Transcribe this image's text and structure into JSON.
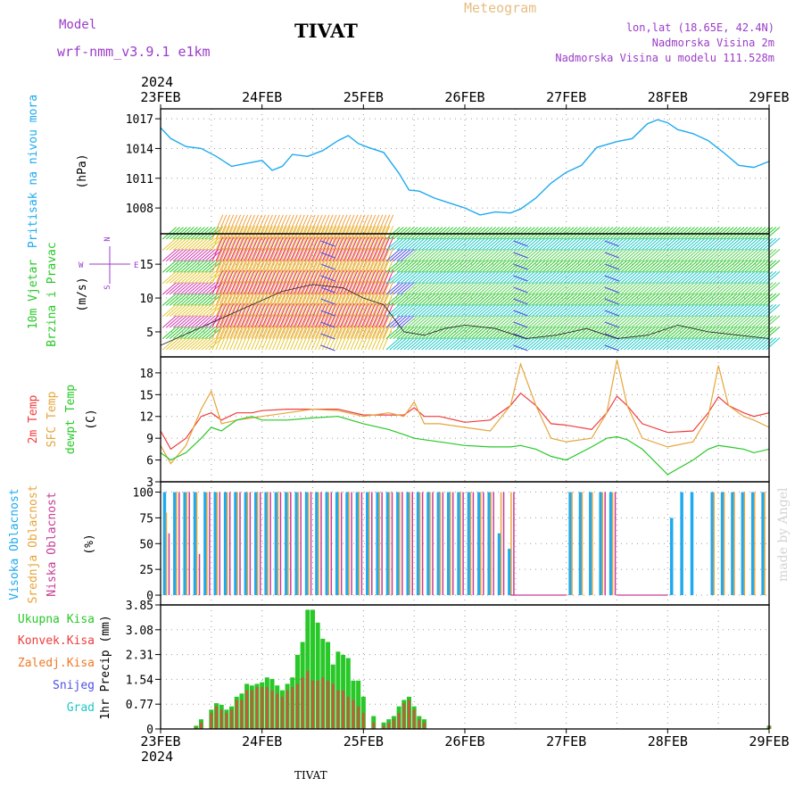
{
  "header": {
    "model_label": "Model",
    "model_name": "wrf-nmm_v3.9.1  e1km",
    "station": "TIVAT",
    "meteogram": "Meteogram",
    "lonlat": "lon,lat (18.65E, 42.4N)",
    "elevation": "Nadmorska Visina 2m",
    "model_elevation": "Nadmorska Visina u modelu 111.528m",
    "footer_station": "TIVAT",
    "signature": "made by Angel",
    "year_top": "2024",
    "year_bottom": "2024"
  },
  "colors": {
    "pressure": "#1eaaf0",
    "temp2m": "#f03c3c",
    "sfc_temp": "#e6a53c",
    "dewpt": "#28c828",
    "high_cloud": "#1eaaf0",
    "mid_cloud": "#e6a53c",
    "low_cloud": "#c83c96",
    "precip_total": "#28c828",
    "precip_conv": "#f03c3c",
    "sleet": "#f07828",
    "snow": "#5050e6",
    "hail": "#1ec8c8",
    "wind_axis_label": "#9b3cc8"
  },
  "chart_data": [
    {
      "type": "line",
      "panel": "pressure",
      "x_labels": [
        "23FEB",
        "24FEB",
        "25FEB",
        "26FEB",
        "27FEB",
        "28FEB",
        "29FEB"
      ],
      "ylabel_colored": "Pritisak na nivou mora",
      "ylabel_unit": "(hPa)",
      "y_ticks": [
        1008,
        1011,
        1014,
        1017
      ],
      "ylim": [
        1005.4,
        1018.0
      ],
      "x_days": [
        0.0,
        0.1,
        0.25,
        0.4,
        0.55,
        0.7,
        0.85,
        1.0,
        1.1,
        1.2,
        1.3,
        1.45,
        1.6,
        1.75,
        1.85,
        1.95,
        2.05,
        2.2,
        2.35,
        2.45,
        2.55,
        2.7,
        2.85,
        3.0,
        3.15,
        3.3,
        3.45,
        3.55,
        3.7,
        3.85,
        4.0,
        4.15,
        4.3,
        4.5,
        4.65,
        4.8,
        4.9,
        5.0,
        5.1,
        5.25,
        5.4,
        5.55,
        5.7,
        5.85,
        6.0
      ],
      "series": [
        {
          "values": [
            1016.1,
            1015.0,
            1014.2,
            1014.0,
            1013.2,
            1012.2,
            1012.5,
            1012.8,
            1011.8,
            1012.2,
            1013.4,
            1013.2,
            1013.8,
            1014.8,
            1015.3,
            1014.5,
            1014.1,
            1013.6,
            1011.5,
            1009.8,
            1009.7,
            1009.0,
            1008.5,
            1008.0,
            1007.3,
            1007.6,
            1007.5,
            1007.9,
            1009.0,
            1010.5,
            1011.6,
            1012.3,
            1014.1,
            1014.7,
            1015.0,
            1016.5,
            1016.9,
            1016.6,
            1015.9,
            1015.5,
            1014.8,
            1013.6,
            1012.3,
            1012.1,
            1012.7
          ]
        }
      ]
    },
    {
      "type": "line",
      "panel": "wind",
      "ylabel_colored": [
        "10m Vjetar",
        "Brzina i Pravac"
      ],
      "ylabel_unit": "(m/s)",
      "compass_labels": [
        "N",
        "E",
        "S",
        "W"
      ],
      "y_ticks": [
        5,
        10,
        15
      ],
      "ylim": [
        1.3,
        19.5
      ],
      "x_days": [
        0.0,
        0.3,
        0.6,
        0.9,
        1.2,
        1.5,
        1.8,
        2.0,
        2.2,
        2.4,
        2.6,
        2.8,
        3.0,
        3.3,
        3.6,
        3.9,
        4.2,
        4.5,
        4.8,
        5.1,
        5.4,
        5.7,
        6.0
      ],
      "series": [
        {
          "values": [
            3.0,
            5.0,
            7.0,
            9.0,
            11.0,
            12.0,
            11.5,
            10.0,
            9.0,
            5.0,
            4.5,
            5.5,
            6.0,
            5.5,
            4.0,
            4.5,
            5.5,
            4.0,
            4.5,
            6.0,
            5.0,
            4.5,
            4.0
          ]
        }
      ]
    },
    {
      "type": "line",
      "panel": "temperature",
      "ylabel_colored": [
        "2m Temp",
        "SFC Temp",
        "dewpt Temp"
      ],
      "ylabel_unit": "(C)",
      "y_ticks": [
        3,
        6,
        9,
        12,
        15,
        18
      ],
      "ylim": [
        3,
        20.2
      ],
      "x_days": [
        0.0,
        0.1,
        0.25,
        0.4,
        0.5,
        0.6,
        0.75,
        0.9,
        1.0,
        1.25,
        1.5,
        1.75,
        2.0,
        2.25,
        2.4,
        2.5,
        2.6,
        2.75,
        3.0,
        3.25,
        3.45,
        3.55,
        3.7,
        3.85,
        4.0,
        4.25,
        4.4,
        4.5,
        4.6,
        4.75,
        5.0,
        5.25,
        5.4,
        5.5,
        5.6,
        5.75,
        5.85,
        6.0
      ],
      "series": [
        {
          "name": "2m Temp",
          "values": [
            10.0,
            7.5,
            9.0,
            12.0,
            12.5,
            11.5,
            12.5,
            12.5,
            12.8,
            13.0,
            13.0,
            13.0,
            12.2,
            12.2,
            12.2,
            13.2,
            12.0,
            12.0,
            11.2,
            11.5,
            13.5,
            15.2,
            13.5,
            11.0,
            10.8,
            10.2,
            12.5,
            14.8,
            13.5,
            11.0,
            9.8,
            10.0,
            12.5,
            14.7,
            13.5,
            12.5,
            12.0,
            12.5
          ]
        },
        {
          "name": "SFC Temp",
          "values": [
            8.0,
            5.5,
            8.0,
            13.0,
            15.5,
            11.0,
            11.5,
            11.8,
            12.0,
            12.5,
            13.0,
            12.8,
            12.0,
            12.5,
            12.0,
            14.0,
            11.0,
            11.0,
            10.5,
            10.0,
            13.5,
            19.2,
            13.5,
            9.0,
            8.5,
            9.0,
            12.5,
            19.8,
            13.5,
            9.0,
            7.8,
            8.5,
            12.0,
            19.0,
            13.5,
            12.0,
            11.5,
            10.5
          ]
        },
        {
          "name": "dewpt Temp",
          "values": [
            7.0,
            6.0,
            7.0,
            9.0,
            10.5,
            10.0,
            11.5,
            12.0,
            11.5,
            11.5,
            11.8,
            12.0,
            11.0,
            10.2,
            9.5,
            9.0,
            8.8,
            8.5,
            8.0,
            7.8,
            7.8,
            8.0,
            7.5,
            6.5,
            6.0,
            7.8,
            9.0,
            9.2,
            8.8,
            7.5,
            4.0,
            6.0,
            7.5,
            8.0,
            7.8,
            7.5,
            7.0,
            7.5
          ]
        }
      ]
    },
    {
      "type": "bar",
      "panel": "cloud",
      "ylabel_colored": [
        "Visoka Oblacnost",
        "Srednja Oblacnost",
        "Niska Oblacnost"
      ],
      "ylabel_unit": "(%)",
      "y_ticks": [
        0,
        25,
        50,
        75,
        100
      ],
      "ylim": [
        0,
        100
      ],
      "x_days": [
        0.05,
        0.15,
        0.25,
        0.35,
        0.45,
        0.55,
        0.65,
        0.75,
        0.85,
        0.95,
        1.05,
        1.15,
        1.25,
        1.35,
        1.45,
        1.55,
        1.65,
        1.75,
        1.85,
        1.95,
        2.05,
        2.15,
        2.25,
        2.35,
        2.45,
        2.55,
        2.65,
        2.75,
        2.85,
        2.95,
        3.05,
        3.15,
        3.25,
        3.35,
        3.45,
        4.05,
        4.15,
        4.25,
        4.35,
        4.45,
        5.05,
        5.15,
        5.25,
        5.45,
        5.55,
        5.65,
        5.75,
        5.85,
        5.95
      ],
      "series": [
        {
          "name": "Visoka Oblacnost",
          "values": [
            100,
            100,
            100,
            100,
            100,
            100,
            100,
            100,
            100,
            100,
            100,
            100,
            100,
            100,
            100,
            100,
            100,
            100,
            100,
            100,
            100,
            100,
            100,
            100,
            100,
            100,
            100,
            100,
            100,
            100,
            100,
            100,
            100,
            60,
            45,
            100,
            100,
            100,
            100,
            100,
            75,
            100,
            100,
            100,
            100,
            100,
            100,
            100,
            100
          ]
        },
        {
          "name": "Srednja Oblacnost",
          "values": [
            80,
            100,
            100,
            100,
            100,
            100,
            100,
            100,
            100,
            100,
            100,
            100,
            100,
            100,
            100,
            100,
            100,
            100,
            100,
            100,
            100,
            100,
            100,
            100,
            100,
            100,
            100,
            100,
            100,
            100,
            100,
            100,
            100,
            100,
            100,
            100,
            100,
            100,
            100,
            100,
            0,
            0,
            0,
            100,
            100,
            100,
            100,
            100,
            100
          ]
        },
        {
          "name": "Niska Oblacnost",
          "values": [
            60,
            100,
            100,
            40,
            100,
            100,
            100,
            100,
            100,
            100,
            100,
            100,
            100,
            100,
            100,
            100,
            100,
            100,
            100,
            100,
            100,
            100,
            100,
            100,
            100,
            100,
            100,
            100,
            100,
            100,
            100,
            100,
            100,
            100,
            100,
            0,
            0,
            0,
            100,
            100,
            0,
            0,
            0,
            0,
            0,
            0,
            0,
            0,
            0
          ]
        }
      ]
    },
    {
      "type": "bar",
      "panel": "precipitation",
      "ylabel": "1hr Precip (mm)",
      "legend": [
        "Ukupna Kisa",
        "Konvek.Kisa",
        "Zaledj.Kisa",
        "Snijeg",
        "Grad"
      ],
      "y_ticks": [
        "0",
        "0.77",
        "1.54",
        "2.31",
        "3.08",
        "3.85"
      ],
      "ylim": [
        0,
        3.85
      ],
      "x_labels": [
        "23FEB",
        "24FEB",
        "25FEB",
        "26FEB",
        "27FEB",
        "28FEB",
        "29FEB"
      ],
      "x_days": [
        0.35,
        0.4,
        0.5,
        0.55,
        0.6,
        0.65,
        0.7,
        0.75,
        0.8,
        0.85,
        0.9,
        0.95,
        1.0,
        1.05,
        1.1,
        1.15,
        1.2,
        1.25,
        1.3,
        1.35,
        1.4,
        1.45,
        1.5,
        1.55,
        1.6,
        1.65,
        1.7,
        1.75,
        1.8,
        1.85,
        1.9,
        1.95,
        2.0,
        2.1,
        2.2,
        2.25,
        2.3,
        2.35,
        2.4,
        2.45,
        2.5,
        2.55,
        2.6,
        6.0
      ],
      "series": [
        {
          "name": "Ukupna Kisa",
          "values": [
            0.1,
            0.3,
            0.6,
            0.8,
            0.75,
            0.6,
            0.7,
            1.0,
            1.1,
            1.4,
            1.35,
            1.4,
            1.45,
            1.6,
            1.55,
            1.35,
            1.2,
            1.4,
            1.6,
            2.3,
            2.7,
            3.7,
            3.7,
            3.3,
            2.8,
            2.7,
            2.0,
            2.4,
            2.3,
            2.2,
            1.5,
            1.5,
            1.0,
            0.4,
            0.2,
            0.3,
            0.4,
            0.7,
            0.9,
            1.0,
            0.7,
            0.4,
            0.3,
            0.1
          ]
        },
        {
          "name": "Konvek.Kisa",
          "values": [
            0.05,
            0.2,
            0.5,
            0.7,
            0.6,
            0.5,
            0.6,
            0.9,
            0.9,
            1.2,
            1.2,
            1.3,
            1.3,
            1.3,
            1.2,
            1.1,
            1.0,
            1.2,
            1.3,
            1.4,
            1.6,
            1.8,
            1.5,
            1.5,
            1.6,
            1.5,
            1.4,
            1.2,
            1.2,
            1.0,
            0.9,
            0.7,
            0.5,
            0.2,
            0.1,
            0.2,
            0.3,
            0.5,
            0.8,
            0.9,
            0.6,
            0.3,
            0.2,
            0.1
          ]
        }
      ]
    }
  ]
}
